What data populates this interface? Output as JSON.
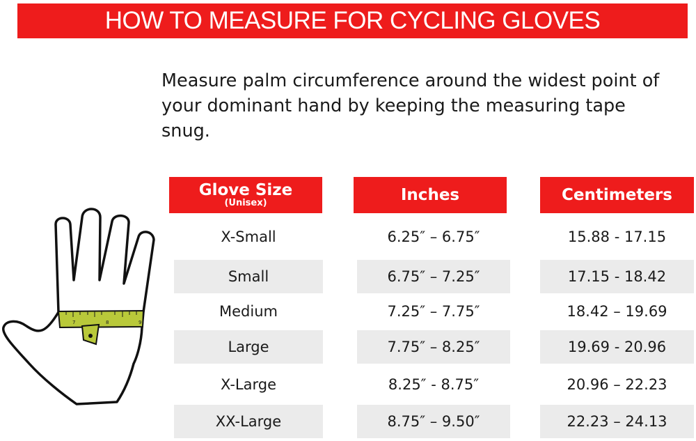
{
  "title": "HOW TO MEASURE FOR CYCLING GLOVES",
  "instructions": "Measure palm circumference around the widest point of your dominant hand by keeping the measuring tape snug.",
  "table": {
    "headers": {
      "size": "Glove Size",
      "size_note": "(Unisex)",
      "inches": "Inches",
      "centimeters": "Centimeters"
    },
    "rows": [
      {
        "size": "X-Small",
        "inches": "6.25″ – 6.75″",
        "cm": "15.88 - 17.15"
      },
      {
        "size": "Small",
        "inches": "6.75″ – 7.25″",
        "cm": "17.15 - 18.42"
      },
      {
        "size": "Medium",
        "inches": "7.25″ – 7.75″",
        "cm": "18.42 – 19.69"
      },
      {
        "size": "Large",
        "inches": "7.75″ – 8.25″",
        "cm": "19.69 - 20.96"
      },
      {
        "size": "X-Large",
        "inches": "8.25″ - 8.75″",
        "cm": "20.96 – 22.23"
      },
      {
        "size": "XX-Large",
        "inches": "8.75″ – 9.50″",
        "cm": "22.23 – 24.13"
      }
    ]
  },
  "illustration": {
    "icon": "hand-with-measuring-tape-icon",
    "tape_numbers": [
      "7",
      "8",
      "9"
    ]
  },
  "colors": {
    "accent": "#ee1c1c",
    "row_shade": "#ebebeb",
    "tape": "#b9c93a"
  }
}
